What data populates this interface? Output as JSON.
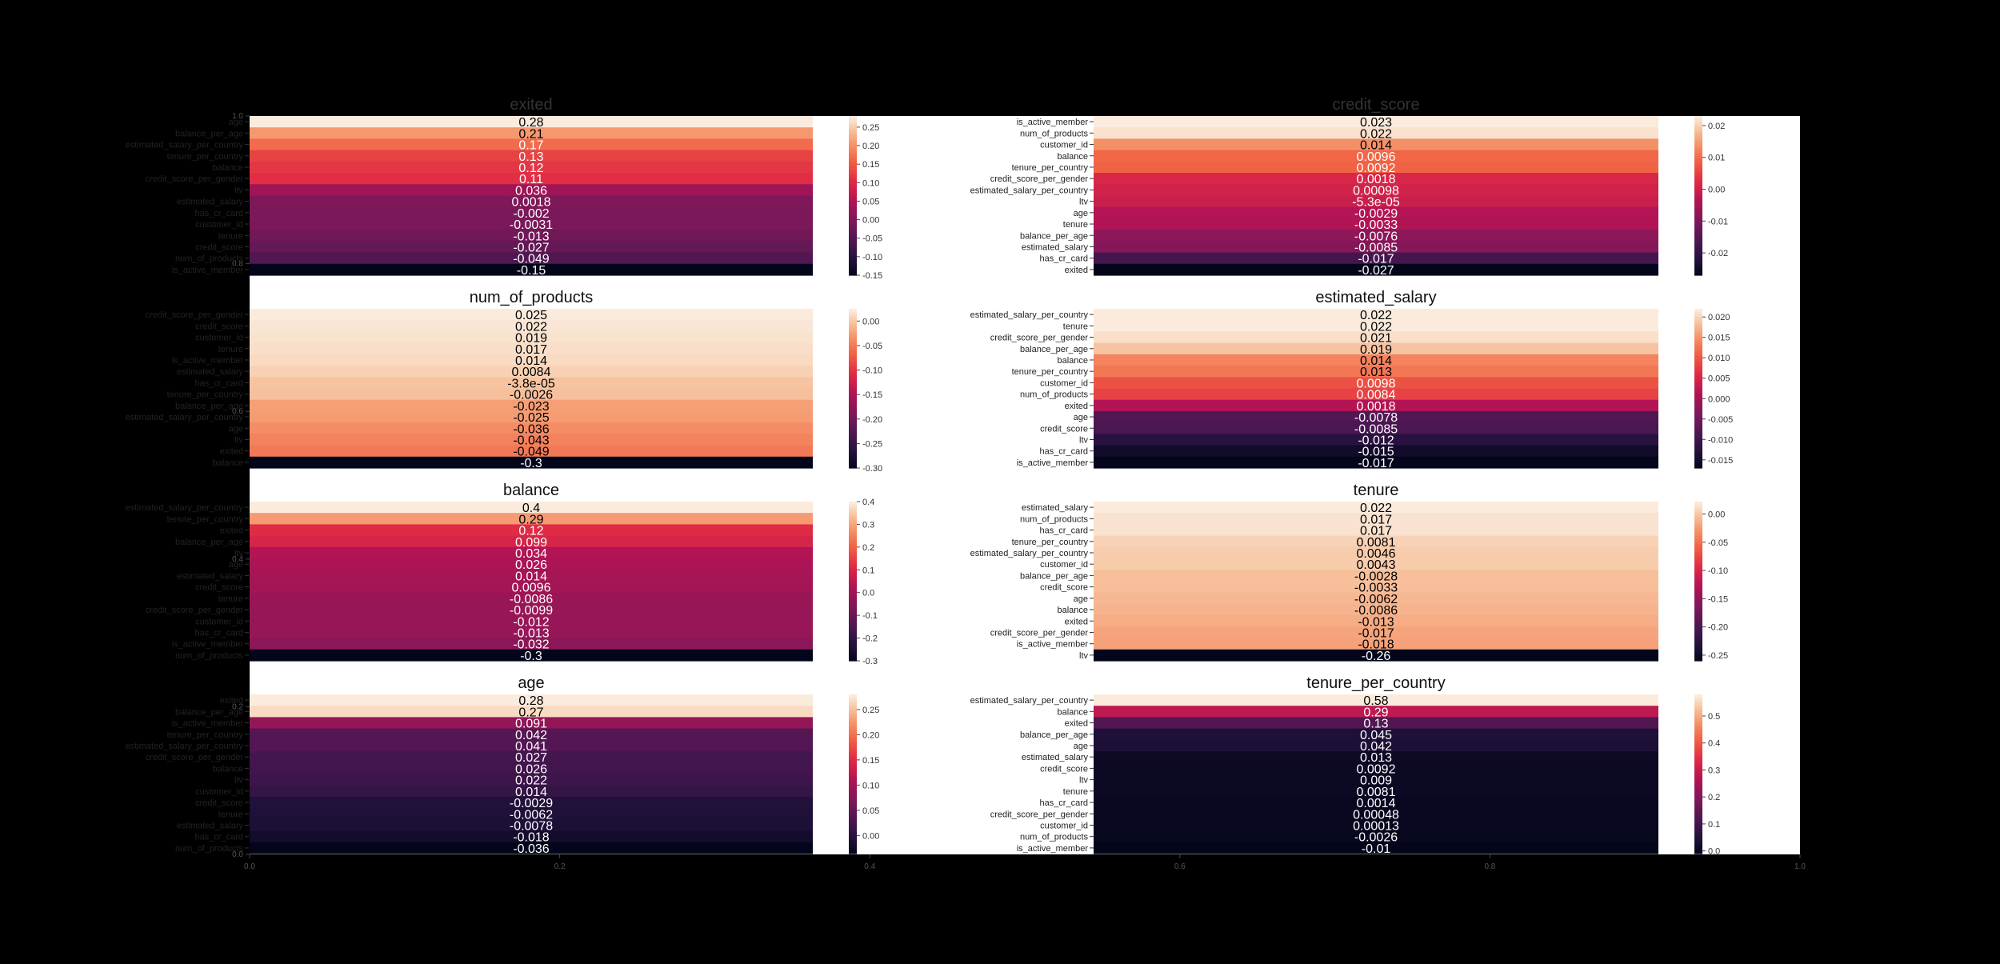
{
  "figure": {
    "colormap": "rocket",
    "background": "#000000",
    "axes_background": "#ffffff",
    "background_axis": {
      "x_ticks": [
        "0.0",
        "0.2",
        "0.4",
        "0.6",
        "0.8",
        "1.0"
      ],
      "y_ticks": [
        "0.0",
        "0.2",
        "0.4",
        "0.6",
        "0.8",
        "1.0"
      ]
    }
  },
  "chart_data": [
    {
      "type": "heatmap",
      "title": "exited",
      "rows": [
        "age",
        "balance_per_age",
        "estimated_salary_per_country",
        "tenure_per_country",
        "balance",
        "credit_score_per_gender",
        "ltv",
        "estimated_salary",
        "has_cr_card",
        "customer_id",
        "tenure",
        "credit_score",
        "num_of_products",
        "is_active_member"
      ],
      "values": [
        0.28,
        0.21,
        0.17,
        0.13,
        0.12,
        0.11,
        0.036,
        0.0018,
        -0.002,
        -0.0031,
        -0.013,
        -0.027,
        -0.049,
        -0.15
      ],
      "labels": [
        "0.28",
        "0.21",
        "0.17",
        "0.13",
        "0.12",
        "0.11",
        "0.036",
        "0.0018",
        "-0.002",
        "-0.0031",
        "-0.013",
        "-0.027",
        "-0.049",
        "-0.15"
      ],
      "colorbar_ticks": [
        "0.25",
        "0.20",
        "0.15",
        "0.10",
        "0.05",
        "0.00",
        "-0.05",
        "-0.10",
        "-0.15"
      ],
      "colorbar_tick_values": [
        0.25,
        0.2,
        0.15,
        0.1,
        0.05,
        0.0,
        -0.05,
        -0.1,
        -0.15
      ]
    },
    {
      "type": "heatmap",
      "title": "credit_score",
      "rows": [
        "is_active_member",
        "num_of_products",
        "customer_id",
        "balance",
        "tenure_per_country",
        "credit_score_per_gender",
        "estimated_salary_per_country",
        "ltv",
        "age",
        "tenure",
        "balance_per_age",
        "estimated_salary",
        "has_cr_card",
        "exited"
      ],
      "values": [
        0.023,
        0.022,
        0.014,
        0.0096,
        0.0092,
        0.0018,
        0.00098,
        -5.3e-05,
        -0.0029,
        -0.0033,
        -0.0076,
        -0.0085,
        -0.017,
        -0.027
      ],
      "labels": [
        "0.023",
        "0.022",
        "0.014",
        "0.0096",
        "0.0092",
        "0.0018",
        "0.00098",
        "-5.3e-05",
        "-0.0029",
        "-0.0033",
        "-0.0076",
        "-0.0085",
        "-0.017",
        "-0.027"
      ],
      "colorbar_ticks": [
        "0.02",
        "0.01",
        "0.00",
        "-0.01",
        "-0.02"
      ],
      "colorbar_tick_values": [
        0.02,
        0.01,
        0.0,
        -0.01,
        -0.02
      ]
    },
    {
      "type": "heatmap",
      "title": "num_of_products",
      "rows": [
        "credit_score_per_gender",
        "credit_score",
        "customer_id",
        "tenure",
        "is_active_member",
        "estimated_salary",
        "has_cr_card",
        "tenure_per_country",
        "balance_per_age",
        "estimated_salary_per_country",
        "age",
        "ltv",
        "exited",
        "balance"
      ],
      "values": [
        0.025,
        0.022,
        0.019,
        0.017,
        0.014,
        0.0084,
        -3.8e-05,
        -0.0026,
        -0.023,
        -0.025,
        -0.036,
        -0.043,
        -0.049,
        -0.3
      ],
      "labels": [
        "0.025",
        "0.022",
        "0.019",
        "0.017",
        "0.014",
        "0.0084",
        "-3.8e-05",
        "-0.0026",
        "-0.023",
        "-0.025",
        "-0.036",
        "-0.043",
        "-0.049",
        "-0.3"
      ],
      "colorbar_ticks": [
        "0.00",
        "-0.05",
        "-0.10",
        "-0.15",
        "-0.20",
        "-0.25",
        "-0.30"
      ],
      "colorbar_tick_values": [
        0.0,
        -0.05,
        -0.1,
        -0.15,
        -0.2,
        -0.25,
        -0.3
      ]
    },
    {
      "type": "heatmap",
      "title": "estimated_salary",
      "rows": [
        "estimated_salary_per_country",
        "tenure",
        "credit_score_per_gender",
        "balance_per_age",
        "balance",
        "tenure_per_country",
        "customer_id",
        "num_of_products",
        "exited",
        "age",
        "credit_score",
        "ltv",
        "has_cr_card",
        "is_active_member"
      ],
      "values": [
        0.022,
        0.022,
        0.021,
        0.019,
        0.014,
        0.013,
        0.0098,
        0.0084,
        0.0018,
        -0.0078,
        -0.0085,
        -0.012,
        -0.015,
        -0.017
      ],
      "labels": [
        "0.022",
        "0.022",
        "0.021",
        "0.019",
        "0.014",
        "0.013",
        "0.0098",
        "0.0084",
        "0.0018",
        "-0.0078",
        "-0.0085",
        "-0.012",
        "-0.015",
        "-0.017"
      ],
      "colorbar_ticks": [
        "0.020",
        "0.015",
        "0.010",
        "0.005",
        "0.000",
        "-0.005",
        "-0.010",
        "-0.015"
      ],
      "colorbar_tick_values": [
        0.02,
        0.015,
        0.01,
        0.005,
        0.0,
        -0.005,
        -0.01,
        -0.015
      ]
    },
    {
      "type": "heatmap",
      "title": "balance",
      "rows": [
        "estimated_salary_per_country",
        "tenure_per_country",
        "exited",
        "balance_per_age",
        "ltv",
        "age",
        "estimated_salary",
        "credit_score",
        "tenure",
        "credit_score_per_gender",
        "customer_id",
        "has_cr_card",
        "is_active_member",
        "num_of_products"
      ],
      "values": [
        0.4,
        0.29,
        0.12,
        0.099,
        0.034,
        0.026,
        0.014,
        0.0096,
        -0.0086,
        -0.0099,
        -0.012,
        -0.013,
        -0.032,
        -0.3
      ],
      "labels": [
        "0.4",
        "0.29",
        "0.12",
        "0.099",
        "0.034",
        "0.026",
        "0.014",
        "0.0096",
        "-0.0086",
        "-0.0099",
        "-0.012",
        "-0.013",
        "-0.032",
        "-0.3"
      ],
      "colorbar_ticks": [
        "0.4",
        "0.3",
        "0.2",
        "0.1",
        "0.0",
        "-0.1",
        "-0.2",
        "-0.3"
      ],
      "colorbar_tick_values": [
        0.4,
        0.3,
        0.2,
        0.1,
        0.0,
        -0.1,
        -0.2,
        -0.3
      ]
    },
    {
      "type": "heatmap",
      "title": "tenure",
      "rows": [
        "estimated_salary",
        "num_of_products",
        "has_cr_card",
        "tenure_per_country",
        "estimated_salary_per_country",
        "customer_id",
        "balance_per_age",
        "credit_score",
        "age",
        "balance",
        "exited",
        "credit_score_per_gender",
        "is_active_member",
        "ltv"
      ],
      "values": [
        0.022,
        0.017,
        0.017,
        0.0081,
        0.0046,
        0.0043,
        -0.0028,
        -0.0033,
        -0.0062,
        -0.0086,
        -0.013,
        -0.017,
        -0.018,
        -0.26
      ],
      "labels": [
        "0.022",
        "0.017",
        "0.017",
        "0.0081",
        "0.0046",
        "0.0043",
        "-0.0028",
        "-0.0033",
        "-0.0062",
        "-0.0086",
        "-0.013",
        "-0.017",
        "-0.018",
        "-0.26"
      ],
      "colorbar_ticks": [
        "0.00",
        "-0.05",
        "-0.10",
        "-0.15",
        "-0.20",
        "-0.25"
      ],
      "colorbar_tick_values": [
        0.0,
        -0.05,
        -0.1,
        -0.15,
        -0.2,
        -0.25
      ]
    },
    {
      "type": "heatmap",
      "title": "age",
      "rows": [
        "exited",
        "balance_per_age",
        "is_active_member",
        "tenure_per_country",
        "estimated_salary_per_country",
        "credit_score_per_gender",
        "balance",
        "ltv",
        "customer_id",
        "credit_score",
        "tenure",
        "estimated_salary",
        "has_cr_card",
        "num_of_products"
      ],
      "values": [
        0.28,
        0.27,
        0.091,
        0.042,
        0.041,
        0.027,
        0.026,
        0.022,
        0.014,
        -0.0029,
        -0.0062,
        -0.0078,
        -0.018,
        -0.036
      ],
      "labels": [
        "0.28",
        "0.27",
        "0.091",
        "0.042",
        "0.041",
        "0.027",
        "0.026",
        "0.022",
        "0.014",
        "-0.0029",
        "-0.0062",
        "-0.0078",
        "-0.018",
        "-0.036"
      ],
      "colorbar_ticks": [
        "0.25",
        "0.20",
        "0.15",
        "0.10",
        "0.05",
        "0.00"
      ],
      "colorbar_tick_values": [
        0.25,
        0.2,
        0.15,
        0.1,
        0.05,
        0.0
      ]
    },
    {
      "type": "heatmap",
      "title": "tenure_per_country",
      "rows": [
        "estimated_salary_per_country",
        "balance",
        "exited",
        "balance_per_age",
        "age",
        "estimated_salary",
        "credit_score",
        "ltv",
        "tenure",
        "has_cr_card",
        "credit_score_per_gender",
        "customer_id",
        "num_of_products",
        "is_active_member"
      ],
      "values": [
        0.58,
        0.29,
        0.13,
        0.045,
        0.042,
        0.013,
        0.0092,
        0.009,
        0.0081,
        0.0014,
        0.00048,
        0.00013,
        -0.0026,
        -0.01
      ],
      "labels": [
        "0.58",
        "0.29",
        "0.13",
        "0.045",
        "0.042",
        "0.013",
        "0.0092",
        "0.009",
        "0.0081",
        "0.0014",
        "0.00048",
        "0.00013",
        "-0.0026",
        "-0.01"
      ],
      "colorbar_ticks": [
        "0.5",
        "0.4",
        "0.3",
        "0.2",
        "0.1",
        "0.0"
      ],
      "colorbar_tick_values": [
        0.5,
        0.4,
        0.3,
        0.2,
        0.1,
        0.0
      ]
    }
  ]
}
